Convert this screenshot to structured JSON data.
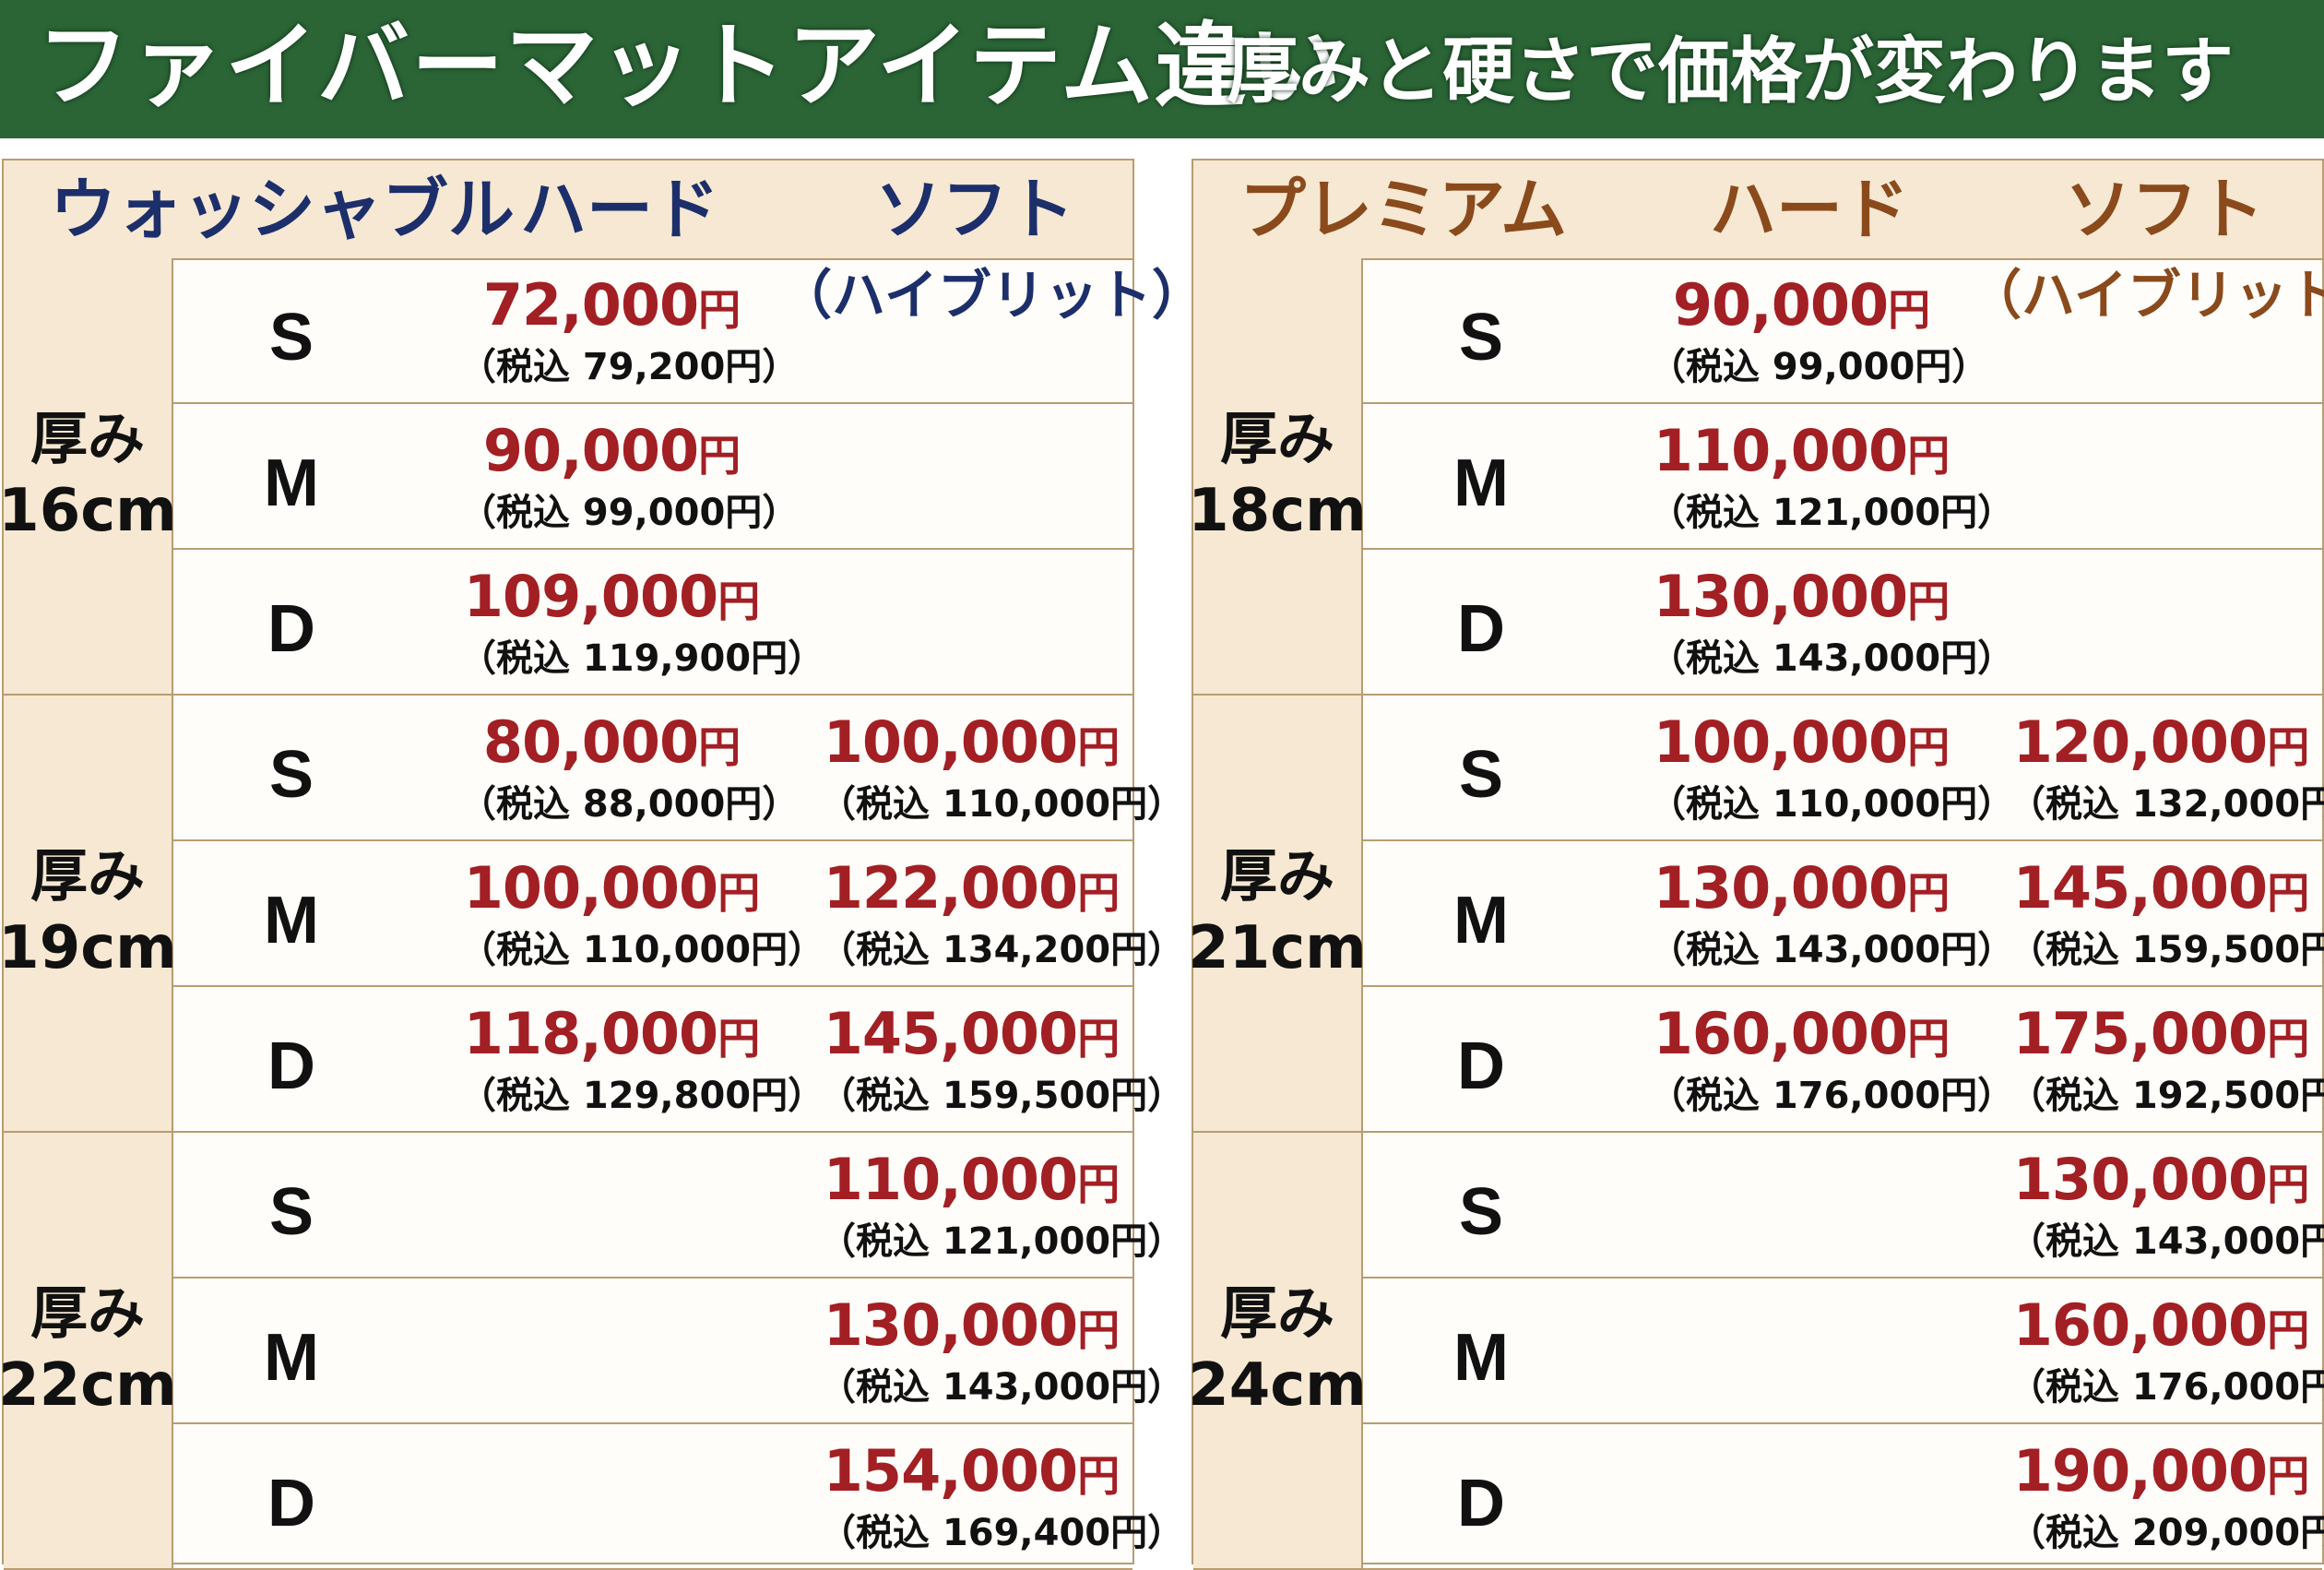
{
  "banner": {
    "title": "ファイバーマットアイテム違い",
    "subtitle": "厚みと硬さで価格が変わります"
  },
  "left": {
    "header": {
      "product": "ウォッシャブル",
      "hard": "ハード",
      "soft": "ソフト",
      "soft_sub": "（ハイブリット）"
    },
    "groups": [
      {
        "label": "厚み",
        "thickness": "16cm",
        "rows": [
          {
            "size": "S",
            "hard": "72,000",
            "hard_tax": "（税込 79,200",
            "soft": "",
            "soft_tax": ""
          },
          {
            "size": "M",
            "hard": "90,000",
            "hard_tax": "（税込 99,000",
            "soft": "",
            "soft_tax": ""
          },
          {
            "size": "D",
            "hard": "109,000",
            "hard_tax": "（税込 119,900",
            "soft": "",
            "soft_tax": ""
          }
        ]
      },
      {
        "label": "厚み",
        "thickness": "19cm",
        "rows": [
          {
            "size": "S",
            "hard": "80,000",
            "hard_tax": "（税込 88,000",
            "soft": "100,000",
            "soft_tax": "（税込 110,000"
          },
          {
            "size": "M",
            "hard": "100,000",
            "hard_tax": "（税込 110,000",
            "soft": "122,000",
            "soft_tax": "（税込 134,200"
          },
          {
            "size": "D",
            "hard": "118,000",
            "hard_tax": "（税込 129,800",
            "soft": "145,000",
            "soft_tax": "（税込 159,500"
          }
        ]
      },
      {
        "label": "厚み",
        "thickness": "22cm",
        "rows": [
          {
            "size": "S",
            "hard": "",
            "hard_tax": "",
            "soft": "110,000",
            "soft_tax": "（税込 121,000"
          },
          {
            "size": "M",
            "hard": "",
            "hard_tax": "",
            "soft": "130,000",
            "soft_tax": "（税込 143,000"
          },
          {
            "size": "D",
            "hard": "",
            "hard_tax": "",
            "soft": "154,000",
            "soft_tax": "（税込 169,400"
          }
        ]
      }
    ]
  },
  "right": {
    "header": {
      "product": "プレミアム",
      "hard": "ハード",
      "soft": "ソフト",
      "soft_sub": "（ハイブリット）"
    },
    "groups": [
      {
        "label": "厚み",
        "thickness": "18cm",
        "rows": [
          {
            "size": "S",
            "hard": "90,000",
            "hard_tax": "（税込 99,000",
            "soft": "",
            "soft_tax": ""
          },
          {
            "size": "M",
            "hard": "110,000",
            "hard_tax": "（税込 121,000",
            "soft": "",
            "soft_tax": ""
          },
          {
            "size": "D",
            "hard": "130,000",
            "hard_tax": "（税込 143,000",
            "soft": "",
            "soft_tax": ""
          }
        ]
      },
      {
        "label": "厚み",
        "thickness": "21cm",
        "rows": [
          {
            "size": "S",
            "hard": "100,000",
            "hard_tax": "（税込 110,000",
            "soft": "120,000",
            "soft_tax": "（税込 132,000"
          },
          {
            "size": "M",
            "hard": "130,000",
            "hard_tax": "（税込 143,000",
            "soft": "145,000",
            "soft_tax": "（税込 159,500"
          },
          {
            "size": "D",
            "hard": "160,000",
            "hard_tax": "（税込 176,000",
            "soft": "175,000",
            "soft_tax": "（税込 192,500"
          }
        ]
      },
      {
        "label": "厚み",
        "thickness": "24cm",
        "rows": [
          {
            "size": "S",
            "hard": "",
            "hard_tax": "",
            "soft": "130,000",
            "soft_tax": "（税込 143,000"
          },
          {
            "size": "M",
            "hard": "",
            "hard_tax": "",
            "soft": "160,000",
            "soft_tax": "（税込 176,000"
          },
          {
            "size": "D",
            "hard": "",
            "hard_tax": "",
            "soft": "190,000",
            "soft_tax": "（税込 209,000"
          }
        ]
      }
    ]
  },
  "currency": "円",
  "tax_close": "円）",
  "colors": {
    "banner_bg": "#2b6536",
    "header_bg": "#f6e8d2",
    "price_red": "#a21f24",
    "left_header_text": "#1c2f6b",
    "right_header_text": "#8a4a1c",
    "border": "#b89c72"
  }
}
